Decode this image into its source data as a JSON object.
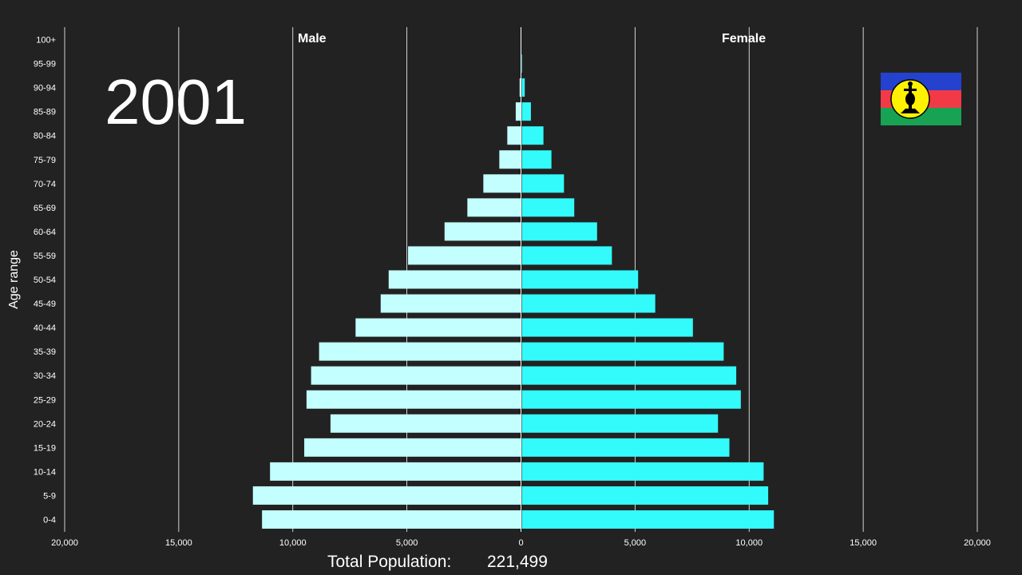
{
  "chart_data": {
    "type": "bar",
    "orientation": "horizontal-pyramid",
    "year": "2001",
    "ylabel": "Age range",
    "left_header": "Male",
    "right_header": "Female",
    "categories": [
      "0-4",
      "5-9",
      "10-14",
      "15-19",
      "20-24",
      "25-29",
      "30-34",
      "35-39",
      "40-44",
      "45-49",
      "50-54",
      "55-59",
      "60-64",
      "65-69",
      "70-74",
      "75-79",
      "80-84",
      "85-89",
      "90-94",
      "95-99",
      "100+"
    ],
    "series": [
      {
        "name": "Male",
        "color": "#c4ffff",
        "values": [
          11350,
          11750,
          11000,
          9500,
          8350,
          9400,
          9200,
          8850,
          7250,
          6150,
          5800,
          4950,
          3350,
          2350,
          1650,
          950,
          600,
          230,
          60,
          10,
          0
        ]
      },
      {
        "name": "Female",
        "color": "#33fbfb",
        "values": [
          11050,
          10800,
          10600,
          9100,
          8600,
          9600,
          9400,
          8850,
          7500,
          5850,
          5100,
          3950,
          3300,
          2300,
          1850,
          1300,
          950,
          400,
          130,
          20,
          0
        ]
      }
    ],
    "x_ticks": [
      "20,000",
      "15,000",
      "10,000",
      "5,000",
      "0",
      "5,000",
      "10,000",
      "15,000",
      "20,000"
    ],
    "xlim": [
      -20000,
      20000
    ],
    "grid": true,
    "total_label": "Total Population:",
    "total_value": "221,499"
  },
  "flag": {
    "name": "new-caledonia-flag",
    "colors": [
      "#2442ce",
      "#f23a46",
      "#17a353",
      "#fff200"
    ]
  }
}
